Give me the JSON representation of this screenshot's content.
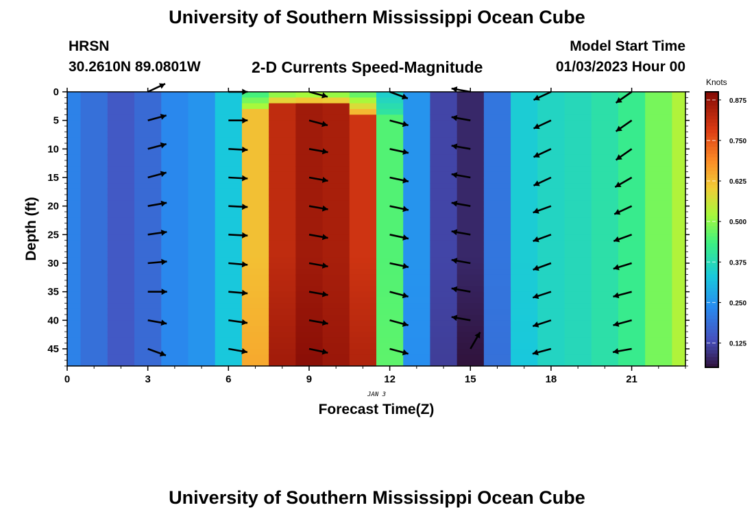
{
  "page": {
    "title_top": "University of Southern Mississippi Ocean Cube",
    "title_bottom": "University of Southern Mississippi Ocean Cube",
    "station_label": "HRSN",
    "station_coords": "30.2610N  89.0801W",
    "plot_title": "2-D Currents Speed-Magnitude",
    "model_start_label": "Model Start Time",
    "model_start_value": "01/03/2023 Hour 00",
    "date_label": "JAN 3"
  },
  "chart_data": {
    "type": "heatmap",
    "title": "2-D Currents Speed-Magnitude",
    "xlabel": "Forecast Time(Z)",
    "ylabel": "Depth (ft)",
    "xlim": [
      0,
      23
    ],
    "ylim": [
      0,
      48
    ],
    "y_inverted": true,
    "x_ticks": [
      0,
      3,
      6,
      9,
      12,
      15,
      18,
      21
    ],
    "y_ticks": [
      0,
      5,
      10,
      15,
      20,
      25,
      30,
      35,
      40,
      45
    ],
    "colorbar": {
      "label": "Knots",
      "min": 0.05,
      "max": 0.9,
      "ticks": [
        0.125,
        0.25,
        0.375,
        0.5,
        0.625,
        0.75,
        0.875
      ],
      "tick_labels": [
        "0.125",
        "0.250",
        "0.375",
        "0.500",
        "0.625",
        "0.750",
        "0.875"
      ]
    },
    "hours": [
      0,
      1,
      2,
      3,
      4,
      5,
      6,
      7,
      8,
      9,
      10,
      11,
      12,
      13,
      14,
      15,
      16,
      17,
      18,
      19,
      20,
      21,
      22,
      23
    ],
    "depth_speed_knots": [
      0.22,
      0.19,
      0.15,
      0.18,
      0.23,
      0.25,
      0.33,
      0.62,
      0.82,
      0.86,
      0.85,
      0.8,
      0.45,
      0.25,
      0.12,
      0.08,
      0.2,
      0.34,
      0.36,
      0.37,
      0.39,
      0.42,
      0.48,
      0.53
    ],
    "surface_speed_knots": [
      0.22,
      0.19,
      0.15,
      0.18,
      0.23,
      0.25,
      0.33,
      0.42,
      0.46,
      0.47,
      0.46,
      0.44,
      0.34,
      0.25,
      0.12,
      0.09,
      0.2,
      0.34,
      0.36,
      0.37,
      0.39,
      0.42,
      0.48,
      0.53
    ],
    "surface_layer_depth_ft": [
      0,
      0,
      0,
      0,
      0,
      0,
      0,
      3,
      2.5,
      2.5,
      2.5,
      4,
      4,
      0,
      0,
      0,
      0,
      0,
      0,
      0,
      0,
      0,
      0,
      0
    ],
    "bottom_speed_knots": [
      0.22,
      0.19,
      0.15,
      0.18,
      0.23,
      0.25,
      0.33,
      0.65,
      0.86,
      0.89,
      0.87,
      0.84,
      0.46,
      0.24,
      0.11,
      0.05,
      0.19,
      0.33,
      0.36,
      0.37,
      0.39,
      0.42,
      0.48,
      0.53
    ],
    "vector_hours": [
      3,
      6,
      9,
      12,
      15,
      18,
      21
    ],
    "vector_depths": [
      0,
      5,
      10,
      15,
      20,
      25,
      30,
      35,
      40,
      45
    ],
    "vector_direction_deg": [
      [
        -25,
        -15,
        -15,
        -15,
        -10,
        -8,
        -5,
        0,
        10,
        20
      ],
      [
        0,
        0,
        3,
        3,
        3,
        3,
        5,
        5,
        8,
        10
      ],
      [
        15,
        15,
        10,
        10,
        10,
        10,
        10,
        10,
        10,
        12
      ],
      [
        20,
        15,
        12,
        12,
        12,
        12,
        12,
        15,
        15,
        15
      ],
      [
        -170,
        -170,
        -170,
        -170,
        -170,
        -170,
        -170,
        -170,
        -170,
        -60
      ],
      [
        155,
        155,
        155,
        155,
        160,
        160,
        160,
        162,
        162,
        165
      ],
      [
        145,
        145,
        145,
        150,
        155,
        160,
        163,
        165,
        165,
        170
      ]
    ]
  }
}
